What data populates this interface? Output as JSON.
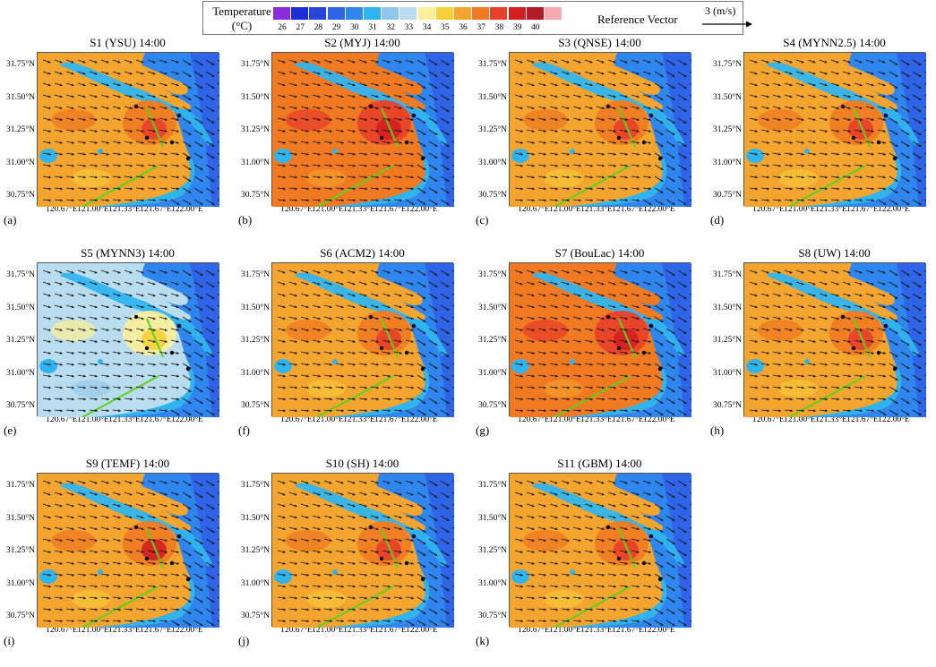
{
  "legend": {
    "title": "Temperature\n(°C)",
    "items": [
      {
        "label": "26",
        "color": "#8a2be2"
      },
      {
        "label": "27",
        "color": "#1c2cd6"
      },
      {
        "label": "28",
        "color": "#2846dc"
      },
      {
        "label": "29",
        "color": "#3064e6"
      },
      {
        "label": "30",
        "color": "#2f86ee"
      },
      {
        "label": "31",
        "color": "#30b4f0"
      },
      {
        "label": "32",
        "color": "#8fc6ea"
      },
      {
        "label": "33",
        "color": "#b9dcee"
      },
      {
        "label": "34",
        "color": "#fbef9a"
      },
      {
        "label": "35",
        "color": "#f7cf3a"
      },
      {
        "label": "36",
        "color": "#f4a52f"
      },
      {
        "label": "37",
        "color": "#ef7a22"
      },
      {
        "label": "38",
        "color": "#e8402a"
      },
      {
        "label": "39",
        "color": "#d41e22"
      },
      {
        "label": "40",
        "color": "#b51d26"
      },
      {
        "label": "",
        "color": "#f6a9ae"
      }
    ],
    "reference_label": "Reference Vector",
    "reference_value": "3 (m/s)"
  },
  "axes": {
    "y_ticks": [
      "31.75°N",
      "31.50°N",
      "31.25°N",
      "31.00°N",
      "30.75°N"
    ],
    "x_ticks": [
      "120.67°E",
      "121.00°E",
      "121.33°E",
      "121.67°E",
      "122.00°E"
    ]
  },
  "panels": [
    {
      "title": "S1 (YSU)  14:00",
      "label": "(a)",
      "scheme": "std"
    },
    {
      "title": "S2 (MYJ)  14:00",
      "label": "(b)",
      "scheme": "hot"
    },
    {
      "title": "S3 (QNSE)  14:00",
      "label": "(c)",
      "scheme": "std"
    },
    {
      "title": "S4 (MYNN2.5)  14:00",
      "label": "(d)",
      "scheme": "std"
    },
    {
      "title": "S5 (MYNN3)  14:00",
      "label": "(e)",
      "scheme": "cool"
    },
    {
      "title": "S6 (ACM2)  14:00",
      "label": "(f)",
      "scheme": "std"
    },
    {
      "title": "S7 (BouLac)  14:00",
      "label": "(g)",
      "scheme": "hot"
    },
    {
      "title": "S8 (UW)  14:00",
      "label": "(h)",
      "scheme": "std"
    },
    {
      "title": "S9 (TEMF)  14:00",
      "label": "(i)",
      "scheme": "warm"
    },
    {
      "title": "S10 (SH)  14:00",
      "label": "(j)",
      "scheme": "std"
    },
    {
      "title": "S11 (GBM)  14:00",
      "label": "(k)",
      "scheme": "std"
    }
  ]
}
